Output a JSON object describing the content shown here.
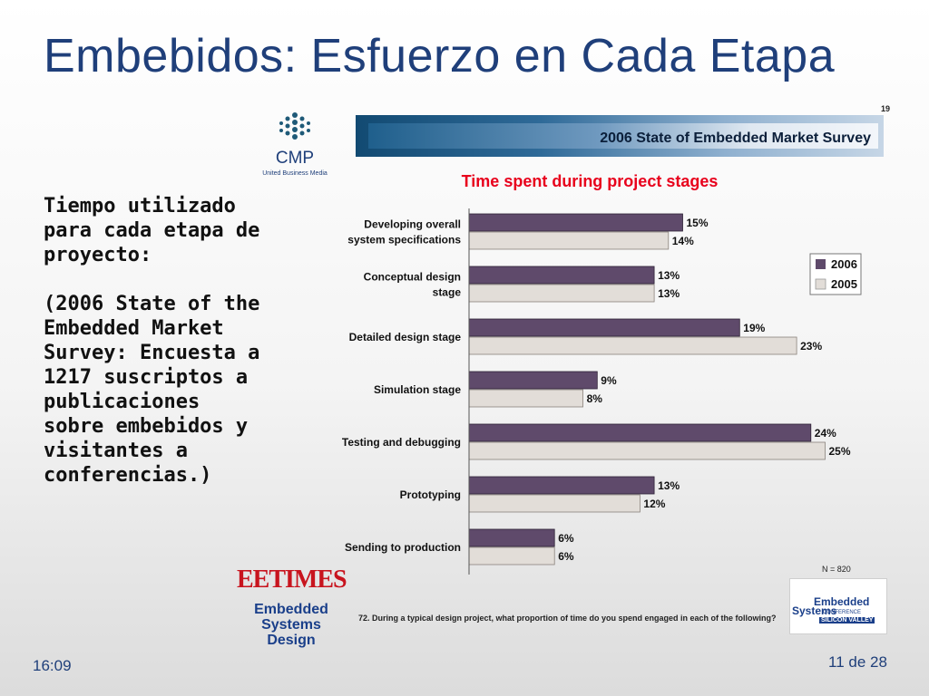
{
  "slide": {
    "title": "Embebidos: Esfuerzo en Cada Etapa",
    "body_lines_1": [
      "Tiempo utilizado",
      "para cada etapa de",
      "proyecto:"
    ],
    "body_lines_2": [
      "(2006 State of the",
      "Embedded Market",
      "Survey: Encuesta a",
      "1217 suscriptos a",
      "publicaciones",
      "sobre embebidos y",
      "visitantes a",
      "conferencias.)"
    ],
    "footer_time": "16:09",
    "footer_page": "11 de 28"
  },
  "logos": {
    "cmp_name": "CMP",
    "cmp_subtitle": "United Business Media",
    "eetimes": "EETIMES",
    "esd_line1": "Embedded",
    "esd_line2": "Systems Design",
    "esc_line1": "Embedded",
    "esc_line2": "Systems",
    "esc_line3": "CONFERENCE",
    "esc_line4": "SILICON VALLEY"
  },
  "colors": {
    "title": "#1f3f7a",
    "chart_title": "#e8001c",
    "bar_2006": "#5f4a6b",
    "bar_2005": "#e2ddd8"
  },
  "figure": {
    "page_number": "19",
    "banner": "2006 State of Embedded Market Survey",
    "n_label": "N = 820",
    "footnote": "72. During a typical design project, what proportion of time do you spend engaged in each of the following?"
  },
  "chart_data": {
    "type": "bar",
    "orientation": "horizontal",
    "title": "Time spent during project stages",
    "categories": [
      [
        "Developing overall",
        "system specifications"
      ],
      [
        "Conceptual design",
        "stage"
      ],
      [
        "Detailed design stage"
      ],
      [
        "Simulation stage"
      ],
      [
        "Testing and debugging"
      ],
      [
        "Prototyping"
      ],
      [
        "Sending to production"
      ]
    ],
    "series": [
      {
        "name": "2006",
        "values": [
          15,
          13,
          19,
          9,
          24,
          13,
          6
        ],
        "labels": [
          "15%",
          "13%",
          "19%",
          "9%",
          "24%",
          "13%",
          "6%"
        ]
      },
      {
        "name": "2005",
        "values": [
          14,
          13,
          23,
          8,
          25,
          12,
          6
        ],
        "labels": [
          "14%",
          "13%",
          "23%",
          "8%",
          "25%",
          "12%",
          "6%"
        ]
      }
    ],
    "xlim": [
      0,
      30
    ],
    "unit": "%",
    "grid": false,
    "legend_position": "right"
  }
}
